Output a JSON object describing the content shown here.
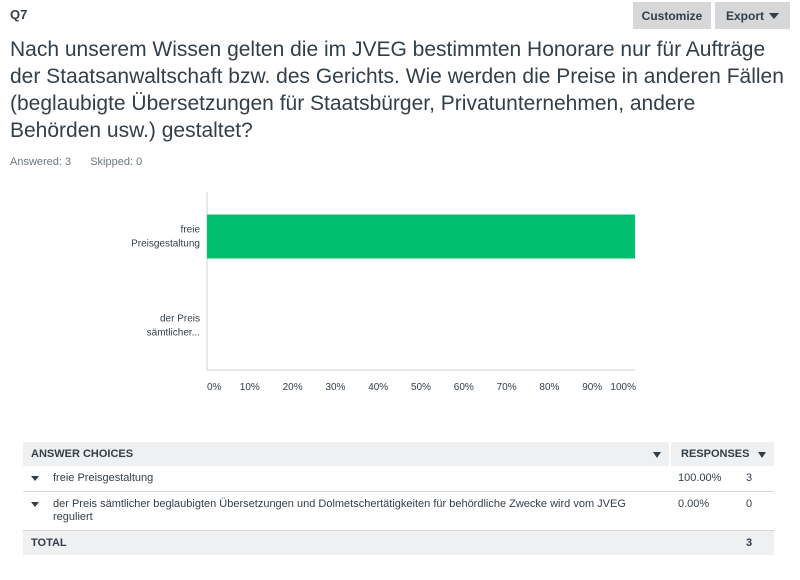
{
  "question": {
    "number": "Q7",
    "title": "Nach unserem Wissen gelten die im JVEG bestimmten Honorare nur für Aufträge der Staatsanwaltschaft bzw. des Gerichts. Wie werden die Preise in anderen Fällen (beglaubigte Übersetzungen für Staatsbürger, Privatunternehmen, andere Behörden usw.) gestaltet?",
    "answered": "Answered: 3",
    "skipped": "Skipped: 0"
  },
  "toolbar": {
    "customize_label": "Customize",
    "export_label": "Export"
  },
  "chart_data": {
    "type": "bar",
    "orientation": "horizontal",
    "categories": [
      [
        "freie",
        "Preisgestaltung"
      ],
      [
        "der Preis",
        "sämtlicher..."
      ]
    ],
    "values": [
      100,
      0
    ],
    "xlim": [
      0,
      100
    ],
    "xticks": [
      "0%",
      "10%",
      "20%",
      "30%",
      "40%",
      "50%",
      "60%",
      "70%",
      "80%",
      "90%",
      "100%"
    ],
    "bar_color": "#00bf6f",
    "grid": false
  },
  "table": {
    "header_choices": "ANSWER CHOICES",
    "header_responses": "RESPONSES",
    "rows": [
      {
        "choice": "freie Preisgestaltung",
        "percent": "100.00%",
        "count": "3"
      },
      {
        "choice": "der Preis sämtlicher beglaubigten Übersetzungen und Dolmetschertätigkeiten für behördliche Zwecke wird vom JVEG reguliert",
        "percent": "0.00%",
        "count": "0"
      }
    ],
    "total_label": "TOTAL",
    "total_count": "3"
  }
}
